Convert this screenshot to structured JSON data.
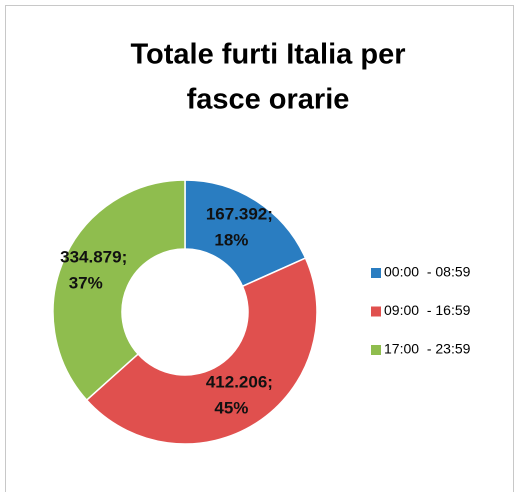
{
  "chart_data": {
    "type": "donut",
    "title_lines": [
      "Totale furti Italia per",
      "fasce orarie"
    ],
    "categories": [
      "00:00  - 08:59",
      "09:00  - 16:59",
      "17:00  - 23:59"
    ],
    "values": [
      167392,
      412206,
      334879
    ],
    "value_labels": [
      "167.392;",
      "412.206;",
      "334.879;"
    ],
    "percentages": [
      18,
      45,
      37
    ],
    "percentage_labels": [
      "18%",
      "45%",
      "37%"
    ],
    "colors": [
      "#2a7dc1",
      "#e0504e",
      "#8fbd4e"
    ],
    "legend": "right"
  }
}
